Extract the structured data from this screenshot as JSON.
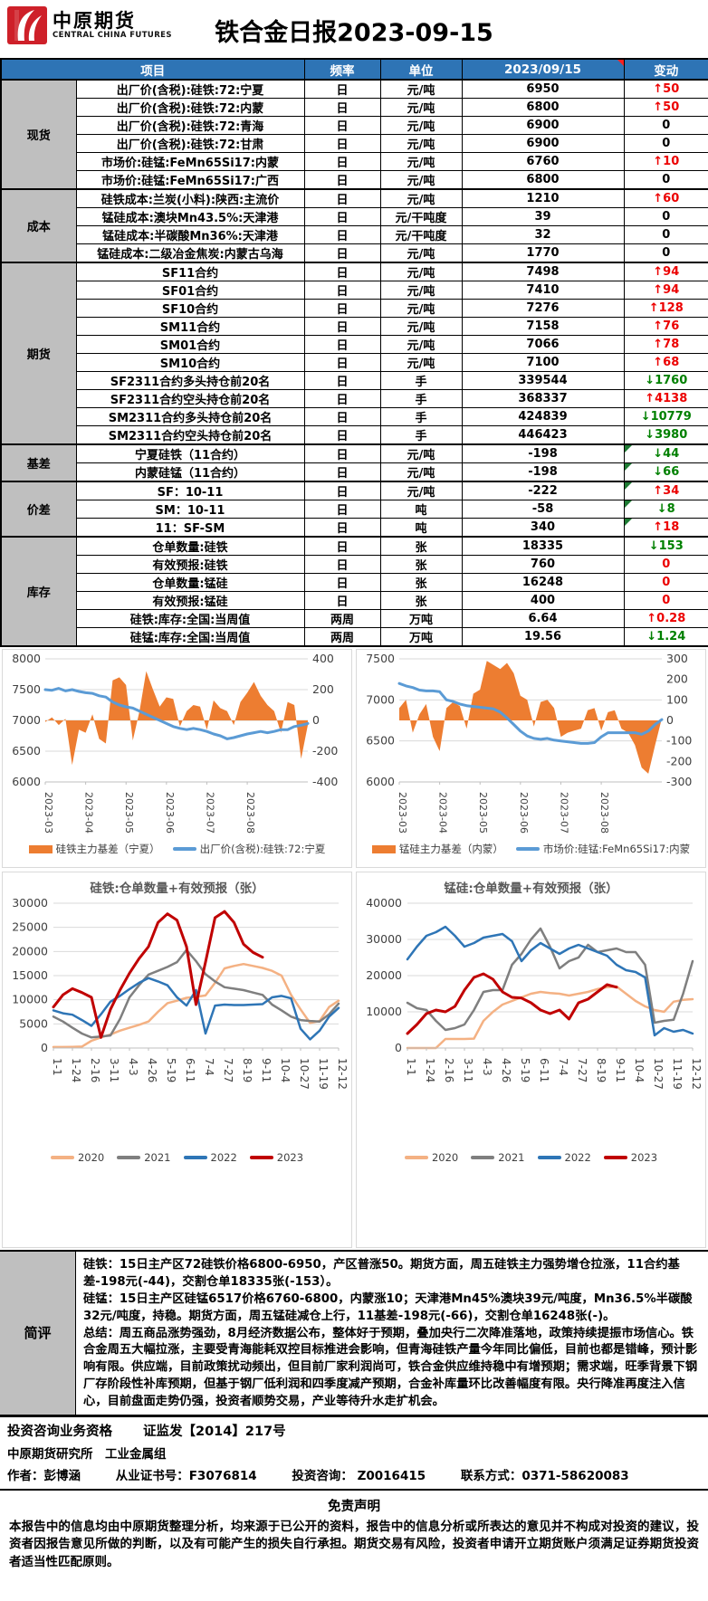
{
  "header": {
    "logo_cn": "中原期货",
    "logo_en": "CENTRAL CHINA FUTURES",
    "title": "铁合金日报2023-09-15"
  },
  "colors": {
    "header_blue": "#2E74B5",
    "group_gray": "#BFBFBF",
    "up_red": "#EC0000",
    "down_green": "#008000",
    "area_orange": "#ED7D31",
    "line_blue": "#5B9BD5"
  },
  "table": {
    "columns": [
      "项目",
      "频率",
      "单位",
      "2023/09/15",
      "变动"
    ],
    "groups": [
      {
        "label": "现货",
        "rows": [
          {
            "item": "出厂价(含税):硅铁:72:宁夏",
            "freq": "日",
            "unit": "元/吨",
            "value": "6950",
            "change": "50",
            "dir": "up"
          },
          {
            "item": "出厂价(含税):硅铁:72:内蒙",
            "freq": "日",
            "unit": "元/吨",
            "value": "6800",
            "change": "50",
            "dir": "up"
          },
          {
            "item": "出厂价(含税):硅铁:72:青海",
            "freq": "日",
            "unit": "元/吨",
            "value": "6900",
            "change": "0",
            "dir": "zero"
          },
          {
            "item": "出厂价(含税):硅铁:72:甘肃",
            "freq": "日",
            "unit": "元/吨",
            "value": "6900",
            "change": "0",
            "dir": "zero"
          },
          {
            "item": "市场价:硅锰:FeMn65Si17:内蒙",
            "freq": "日",
            "unit": "元/吨",
            "value": "6760",
            "change": "10",
            "dir": "up"
          },
          {
            "item": "市场价:硅锰:FeMn65Si17:广西",
            "freq": "日",
            "unit": "元/吨",
            "value": "6800",
            "change": "0",
            "dir": "zero"
          }
        ]
      },
      {
        "label": "成本",
        "rows": [
          {
            "item": "硅铁成本:兰炭(小料):陕西:主流价",
            "freq": "日",
            "unit": "元/吨",
            "value": "1210",
            "change": "60",
            "dir": "up"
          },
          {
            "item": "锰硅成本:澳块Mn43.5%:天津港",
            "freq": "日",
            "unit": "元/干吨度",
            "value": "39",
            "change": "0",
            "dir": "zero"
          },
          {
            "item": "锰硅成本:半碳酸Mn36%:天津港",
            "freq": "日",
            "unit": "元/干吨度",
            "value": "32",
            "change": "0",
            "dir": "zero"
          },
          {
            "item": "锰硅成本:二级冶金焦炭:内蒙古乌海",
            "freq": "日",
            "unit": "元/吨",
            "value": "1770",
            "change": "0",
            "dir": "zero"
          }
        ]
      },
      {
        "label": "期货",
        "rows": [
          {
            "item": "SF11合约",
            "freq": "日",
            "unit": "元/吨",
            "value": "7498",
            "change": "94",
            "dir": "up"
          },
          {
            "item": "SF01合约",
            "freq": "日",
            "unit": "元/吨",
            "value": "7410",
            "change": "94",
            "dir": "up"
          },
          {
            "item": "SF10合约",
            "freq": "日",
            "unit": "元/吨",
            "value": "7276",
            "change": "128",
            "dir": "up"
          },
          {
            "item": "SM11合约",
            "freq": "日",
            "unit": "元/吨",
            "value": "7158",
            "change": "76",
            "dir": "up"
          },
          {
            "item": "SM01合约",
            "freq": "日",
            "unit": "元/吨",
            "value": "7066",
            "change": "78",
            "dir": "up"
          },
          {
            "item": "SM10合约",
            "freq": "日",
            "unit": "元/吨",
            "value": "7100",
            "change": "68",
            "dir": "up"
          },
          {
            "item": "SF2311合约多头持仓前20名",
            "freq": "日",
            "unit": "手",
            "value": "339544",
            "change": "1760",
            "dir": "down"
          },
          {
            "item": "SF2311合约空头持仓前20名",
            "freq": "日",
            "unit": "手",
            "value": "368337",
            "change": "4138",
            "dir": "up"
          },
          {
            "item": "SM2311合约多头持仓前20名",
            "freq": "日",
            "unit": "手",
            "value": "424839",
            "change": "10779",
            "dir": "down"
          },
          {
            "item": "SM2311合约空头持仓前20名",
            "freq": "日",
            "unit": "手",
            "value": "446423",
            "change": "3980",
            "dir": "down"
          }
        ]
      },
      {
        "label": "基差",
        "rows": [
          {
            "item": "宁夏硅铁（11合约）",
            "freq": "日",
            "unit": "元/吨",
            "value": "-198",
            "change": "44",
            "dir": "down",
            "mark": true
          },
          {
            "item": "内蒙硅锰（11合约）",
            "freq": "日",
            "unit": "元/吨",
            "value": "-198",
            "change": "66",
            "dir": "down",
            "mark": true
          }
        ]
      },
      {
        "label": "价差",
        "rows": [
          {
            "item": "SF：10-11",
            "freq": "日",
            "unit": "元/吨",
            "value": "-222",
            "change": "34",
            "dir": "up",
            "mark": true
          },
          {
            "item": "SM：10-11",
            "freq": "日",
            "unit": "吨",
            "value": "-58",
            "change": "8",
            "dir": "down",
            "mark": true
          },
          {
            "item": "11：SF-SM",
            "freq": "日",
            "unit": "吨",
            "value": "340",
            "change": "18",
            "dir": "up",
            "mark": true
          }
        ]
      },
      {
        "label": "库存",
        "rows": [
          {
            "item": "仓单数量:硅铁",
            "freq": "日",
            "unit": "张",
            "value": "18335",
            "change": "153",
            "dir": "down"
          },
          {
            "item": "有效预报:硅铁",
            "freq": "日",
            "unit": "张",
            "value": "760",
            "change": "0",
            "dir": "zero-red"
          },
          {
            "item": "仓单数量:锰硅",
            "freq": "日",
            "unit": "张",
            "value": "16248",
            "change": "0",
            "dir": "zero-red"
          },
          {
            "item": "有效预报:锰硅",
            "freq": "日",
            "unit": "张",
            "value": "400",
            "change": "0",
            "dir": "zero-red"
          },
          {
            "item": "硅铁:库存:全国:当周值",
            "freq": "两周",
            "unit": "万吨",
            "value": "6.64",
            "change": "0.28",
            "dir": "up"
          },
          {
            "item": "硅锰:库存:全国:当周值",
            "freq": "两周",
            "unit": "万吨",
            "value": "19.56",
            "change": "1.24",
            "dir": "down"
          }
        ]
      }
    ]
  },
  "chart_data": [
    {
      "type": "area+line",
      "title": "",
      "x_labels": [
        "2023-03",
        "2023-04",
        "2023-05",
        "2023-06",
        "2023-07",
        "2023-08"
      ],
      "left_axis": {
        "min": 6000,
        "max": 8000,
        "ticks": [
          8000,
          7500,
          7000,
          6500,
          6000
        ]
      },
      "right_axis": {
        "min": -400,
        "max": 400,
        "ticks": [
          400,
          200,
          0,
          -200,
          -400
        ]
      },
      "area_series": {
        "name": "硅铁主力基差（宁夏）",
        "axis": "right",
        "color": "#ED7D31",
        "values": [
          -10,
          20,
          -30,
          10,
          -290,
          -60,
          -80,
          40,
          -120,
          -150,
          260,
          280,
          230,
          -130,
          60,
          320,
          200,
          90,
          150,
          140,
          -40,
          60,
          100,
          90,
          -60,
          130,
          80,
          60,
          -30,
          120,
          180,
          250,
          160,
          100,
          60,
          -80,
          120,
          100,
          -250,
          -30
        ]
      },
      "line_series": {
        "name": "出厂价(含税):硅铁:72:宁夏",
        "axis": "left",
        "color": "#5B9BD5",
        "values": [
          7500,
          7490,
          7520,
          7480,
          7500,
          7470,
          7450,
          7440,
          7400,
          7380,
          7300,
          7250,
          7220,
          7200,
          7150,
          7100,
          7050,
          7000,
          6950,
          6900,
          6870,
          6850,
          6870,
          6850,
          6820,
          6780,
          6750,
          6700,
          6720,
          6750,
          6780,
          6800,
          6820,
          6800,
          6820,
          6850,
          6850,
          6900,
          6920,
          6950
        ]
      }
    },
    {
      "type": "area+line",
      "title": "",
      "x_labels": [
        "2023-03",
        "2023-04",
        "2023-05",
        "2023-06",
        "2023-07",
        "2023-08"
      ],
      "left_axis": {
        "min": 6000,
        "max": 7500,
        "ticks": [
          7500,
          7000,
          6500,
          6000
        ]
      },
      "right_axis": {
        "min": -300,
        "max": 300,
        "ticks": [
          300,
          200,
          100,
          0,
          -100,
          -200,
          -300
        ]
      },
      "area_series": {
        "name": "锰硅主力基差（内蒙）",
        "axis": "right",
        "color": "#ED7D31",
        "values": [
          60,
          100,
          -60,
          30,
          80,
          -80,
          -150,
          60,
          90,
          70,
          -40,
          130,
          150,
          290,
          270,
          250,
          280,
          230,
          120,
          100,
          -30,
          90,
          100,
          60,
          -80,
          -60,
          -50,
          -40,
          50,
          60,
          -50,
          40,
          50,
          -40,
          -60,
          -120,
          -230,
          -260,
          -120,
          10
        ]
      },
      "line_series": {
        "name": "市场价:硅锰:FeMn65Si17:内蒙",
        "axis": "left",
        "color": "#5B9BD5",
        "values": [
          7200,
          7170,
          7150,
          7120,
          7110,
          7110,
          7100,
          7000,
          6980,
          6950,
          6930,
          6920,
          6910,
          6900,
          6890,
          6850,
          6780,
          6700,
          6620,
          6560,
          6530,
          6520,
          6530,
          6510,
          6500,
          6490,
          6480,
          6470,
          6470,
          6480,
          6550,
          6600,
          6600,
          6600,
          6600,
          6600,
          6580,
          6620,
          6700,
          6760
        ]
      }
    },
    {
      "type": "line",
      "title": "硅铁:仓单数量+有效预报（张）",
      "x_labels": [
        "1-1",
        "1-24",
        "2-16",
        "3-11",
        "4-3",
        "4-26",
        "5-19",
        "6-11",
        "7-4",
        "7-27",
        "8-19",
        "9-11",
        "10-4",
        "10-27",
        "11-19",
        "12-12"
      ],
      "x_count": 31,
      "y_axis": {
        "min": 0,
        "max": 30000,
        "step": 5000
      },
      "series": [
        {
          "name": "2020",
          "color": "#F4B183",
          "values": [
            200,
            200,
            250,
            300,
            1500,
            2200,
            2800,
            3600,
            4200,
            4800,
            5500,
            7500,
            9300,
            9800,
            10400,
            10600,
            10900,
            13500,
            16500,
            17000,
            17400,
            17000,
            16600,
            16000,
            15000,
            11000,
            8000,
            5200,
            5600,
            8500,
            9800
          ]
        },
        {
          "name": "2021",
          "color": "#7F7F7F",
          "values": [
            6500,
            5500,
            4200,
            3000,
            2200,
            2400,
            2600,
            6000,
            10500,
            13000,
            15200,
            16000,
            16800,
            17800,
            20300,
            18000,
            15300,
            13800,
            12600,
            12300,
            12000,
            11500,
            11000,
            9000,
            7800,
            6500,
            5800,
            5600,
            5500,
            7000,
            9200
          ]
        },
        {
          "name": "2022",
          "color": "#2E75B6",
          "values": [
            7800,
            7200,
            6900,
            5800,
            4600,
            7000,
            9600,
            10800,
            12200,
            13500,
            14500,
            13800,
            13000,
            10500,
            8800,
            12000,
            3000,
            8800,
            9000,
            8900,
            8900,
            9000,
            9100,
            10500,
            10800,
            10300,
            4000,
            1800,
            3600,
            6500,
            8300
          ]
        },
        {
          "name": "2023",
          "color": "#C00000",
          "values": [
            8500,
            11000,
            12300,
            11500,
            10500,
            2200,
            8000,
            12000,
            15500,
            18500,
            21000,
            26000,
            27800,
            26500,
            21000,
            9000,
            17800,
            27000,
            28300,
            26000,
            21500,
            19800,
            18800
          ]
        }
      ]
    },
    {
      "type": "line",
      "title": "锰硅:仓单数量+有效预报（张）",
      "x_labels": [
        "1-1",
        "1-24",
        "2-16",
        "3-11",
        "4-3",
        "4-26",
        "5-19",
        "6-11",
        "7-4",
        "7-27",
        "8-19",
        "9-11",
        "10-4",
        "10-27",
        "11-19",
        "12-12"
      ],
      "x_count": 31,
      "y_axis": {
        "min": 0,
        "max": 40000,
        "step": 10000
      },
      "series": [
        {
          "name": "2020",
          "color": "#F4B183",
          "values": [
            0,
            0,
            0,
            0,
            2500,
            2500,
            2500,
            2600,
            7500,
            10000,
            12000,
            13000,
            14000,
            15000,
            15500,
            15200,
            15000,
            14500,
            15000,
            15500,
            16300,
            16800,
            17000,
            15000,
            13000,
            11500,
            10500,
            10000,
            12800,
            13300,
            13500
          ]
        },
        {
          "name": "2021",
          "color": "#7F7F7F",
          "values": [
            12500,
            11000,
            10500,
            7500,
            5000,
            5500,
            6500,
            10500,
            15500,
            16000,
            16000,
            23000,
            26000,
            30000,
            33000,
            28000,
            22000,
            24000,
            25000,
            28500,
            26500,
            27000,
            27500,
            26500,
            26500,
            23000,
            7000,
            7500,
            7800,
            15000,
            24000
          ]
        },
        {
          "name": "2022",
          "color": "#2E75B6",
          "values": [
            24500,
            28000,
            31000,
            32000,
            33500,
            31000,
            28000,
            29000,
            30500,
            31000,
            31500,
            29500,
            24000,
            27000,
            29000,
            27500,
            26000,
            27500,
            28500,
            27500,
            26500,
            25500,
            23000,
            21500,
            21000,
            19500,
            3500,
            5500,
            4500,
            5000,
            4000
          ]
        },
        {
          "name": "2023",
          "color": "#C00000",
          "values": [
            4000,
            6500,
            9500,
            10500,
            10000,
            11500,
            16000,
            19500,
            20500,
            19000,
            15500,
            14000,
            13800,
            12500,
            10500,
            9500,
            10500,
            8000,
            12500,
            13500,
            15500,
            17500,
            16800
          ]
        }
      ]
    }
  ],
  "comment": {
    "section_label": "简评",
    "p1_label": "硅铁：",
    "p1": "15日主产区72硅铁价格6800-6950，产区普涨50。期货方面，周五硅铁主力强势增仓拉涨，11合约基差-198元(-44)，交割仓单18335张(-153）。",
    "p2_label": "硅锰：",
    "p2": "15日主产区硅锰6517价格6760-6800，内蒙涨10；天津港Mn45%澳块39元/吨度，Mn36.5%半碳酸32元/吨度，持稳。期货方面，周五锰硅减仓上行，11基差-198元(-66)，交割仓单16248张(-)。",
    "p3_label": "总结：",
    "p3": "周五商品涨势强劲，8月经济数据公布，整体好于预期，叠加央行二次降准落地，政策持续提振市场信心。铁合金周五大幅拉涨，主要受青海能耗双控目标推进会影响，但青海硅铁产量今年同比偏低，目前也都是错峰，预计影响有限。供应端，目前政策扰动频出，但目前厂家利润尚可，铁合金供应维持稳中有增预期；需求端，旺季背景下钢厂存阶段性补库预期，但基于钢厂低利润和四季度减产预期，合金补库量环比改善幅度有限。央行降准再度注入信心，目前盘面走势仍强，投资者顺势交易，产业等待升水走扩机会。"
  },
  "footer": {
    "license_label": "投资咨询业务资格",
    "license_no": "证监发【2014】217号",
    "dept": "中原期货研究所　工业金属组",
    "author": "作者：彭博涵",
    "cert": "从业证书号：F3076814",
    "advisory": "投资咨询： Z0016415",
    "contact": "联系方式：0371-58620083"
  },
  "disclaimer": {
    "title": "免责声明",
    "text": "本报告中的信息均由中原期货整理分析，均来源于已公开的资料，报告中的信息分析或所表达的意见并不构成对投资的建议，投资者因报告意见所做的判断，以及有可能产生的损失自行承担。期货交易有风险，投资者申请开立期货账户须满足证券期货投资者适当性匹配原则。"
  }
}
